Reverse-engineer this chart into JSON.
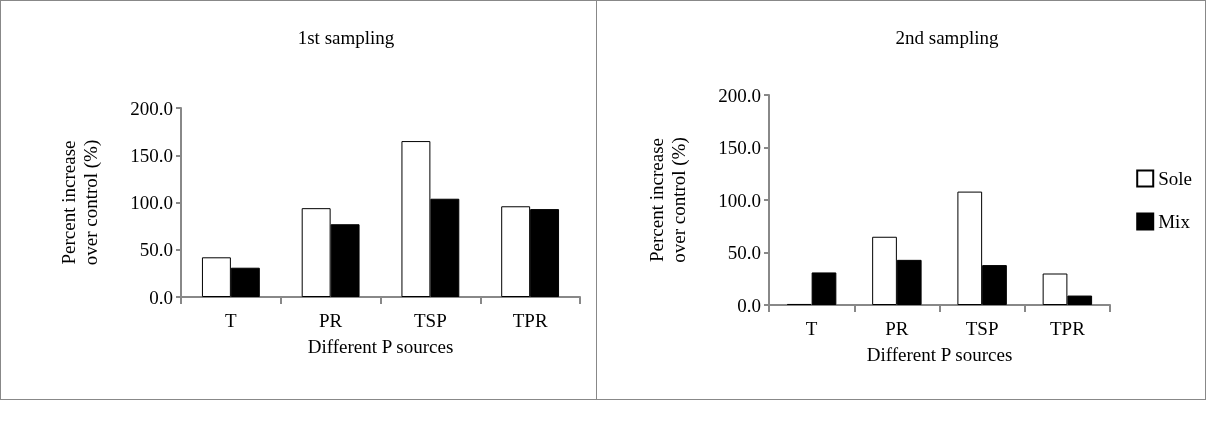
{
  "chart_data": [
    {
      "type": "bar",
      "title": "1st sampling",
      "xlabel": "Different P sources",
      "ylabel": "Percent increase\nover control (%)",
      "categories": [
        "T",
        "PR",
        "TSP",
        "TPR"
      ],
      "series": [
        {
          "color": "#ffffff",
          "values": [
            42,
            94,
            165,
            96
          ]
        },
        {
          "color": "#000000",
          "values": [
            31,
            77,
            104,
            93
          ]
        }
      ],
      "ylim": [
        0,
        200
      ],
      "yticks": [
        {
          "value": 0,
          "label": "0.0"
        },
        {
          "value": 50,
          "label": "50.0"
        },
        {
          "value": 100,
          "label": "100.0"
        },
        {
          "value": 150,
          "label": "150.0"
        },
        {
          "value": 200,
          "label": "200.0"
        }
      ],
      "grid": false,
      "legend": false
    },
    {
      "type": "bar",
      "title": "2nd sampling",
      "xlabel": "Different P sources",
      "ylabel": "Percent increase\nover control (%)",
      "categories": [
        "T",
        "PR",
        "TSP",
        "TPR"
      ],
      "series": [
        {
          "name": "Sole",
          "color": "#ffffff",
          "values": [
            1,
            65,
            108,
            30
          ]
        },
        {
          "name": "Mix",
          "color": "#000000",
          "values": [
            31,
            43,
            38,
            9
          ]
        }
      ],
      "ylim": [
        0,
        200
      ],
      "yticks": [
        {
          "value": 0,
          "label": "0.0"
        },
        {
          "value": 50,
          "label": "50.0"
        },
        {
          "value": 100,
          "label": "100.0"
        },
        {
          "value": 150,
          "label": "150.0"
        },
        {
          "value": 200,
          "label": "200.0"
        }
      ],
      "grid": false,
      "legend": "right"
    }
  ]
}
